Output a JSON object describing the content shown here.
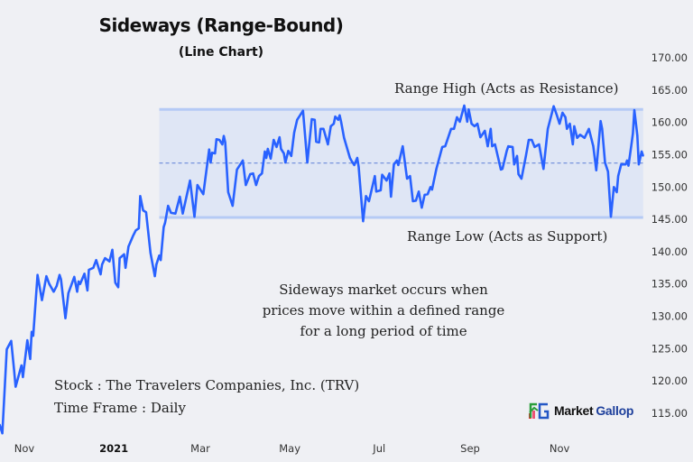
{
  "title": "Sideways (Range-Bound)",
  "subtitle": "(Line Chart)",
  "annotations": {
    "range_high": "Range High (Acts as Resistance)",
    "range_low": "Range Low (Acts as Support)",
    "note": [
      "Sideways market occurs when",
      "prices move within a defined range",
      "for a long period of time"
    ],
    "stock": "Stock : The Travelers Companies, Inc. (TRV)",
    "timeframe": "Time Frame : Daily"
  },
  "brand": {
    "word1": "Market",
    "word2": "Gallop"
  },
  "colors": {
    "line": "#2962ff",
    "band_fill": "#dfe6f5",
    "band_border": "#b5caf5",
    "midline": "#5b7fd6",
    "background": "#eff0f4"
  },
  "chart_data": {
    "type": "line",
    "xlabel": "",
    "ylabel": "",
    "ylim": [
      115,
      170
    ],
    "y_ticks": [
      "115.00",
      "120.00",
      "125.00",
      "130.00",
      "135.00",
      "140.00",
      "145.00",
      "150.00",
      "155.00",
      "160.00",
      "165.00",
      "170.00"
    ],
    "x_ticks": [
      {
        "label": "Nov",
        "date": "2020-11-01",
        "bold": false
      },
      {
        "label": "2021",
        "date": "2021-01-01",
        "bold": true
      },
      {
        "label": "Mar",
        "date": "2021-03-01",
        "bold": false
      },
      {
        "label": "May",
        "date": "2021-05-01",
        "bold": false
      },
      {
        "label": "Jul",
        "date": "2021-07-01",
        "bold": false
      },
      {
        "label": "Sep",
        "date": "2021-09-01",
        "bold": false
      },
      {
        "label": "Nov",
        "date": "2021-11-01",
        "bold": false
      }
    ],
    "y_axis_position": "right",
    "grid": false,
    "range": {
      "start": "2021-02-01",
      "high": 162.0,
      "low": 145.3,
      "mid": 153.7
    },
    "x": [
      "2020-10-15",
      "2020-10-17",
      "2020-10-20",
      "2020-10-23",
      "2020-10-25",
      "2020-10-26",
      "2020-10-30",
      "2020-10-31",
      "2020-11-03",
      "2020-11-05",
      "2020-11-06",
      "2020-11-07",
      "2020-11-10",
      "2020-11-13",
      "2020-11-16",
      "2020-11-18",
      "2020-11-21",
      "2020-11-23",
      "2020-11-25",
      "2020-11-26",
      "2020-11-29",
      "2020-12-01",
      "2020-12-05",
      "2020-12-07",
      "2020-12-08",
      "2020-12-09",
      "2020-12-12",
      "2020-12-14",
      "2020-12-15",
      "2020-12-18",
      "2020-12-20",
      "2020-12-23",
      "2020-12-24",
      "2020-12-26",
      "2020-12-29",
      "2020-12-31",
      "2021-01-02",
      "2021-01-04",
      "2021-01-05",
      "2021-01-08",
      "2021-01-09",
      "2021-01-11",
      "2021-01-14",
      "2021-01-16",
      "2021-01-18",
      "2021-01-19",
      "2021-01-21",
      "2021-01-23",
      "2021-01-26",
      "2021-01-29",
      "2021-01-30",
      "2021-02-01",
      "2021-02-02",
      "2021-02-04",
      "2021-02-05",
      "2021-02-07",
      "2021-02-09",
      "2021-02-12",
      "2021-02-15",
      "2021-02-17",
      "2021-02-22",
      "2021-02-25",
      "2021-02-27",
      "2021-03-03",
      "2021-03-07",
      "2021-03-08",
      "2021-03-09",
      "2021-03-11",
      "2021-03-12",
      "2021-03-14",
      "2021-03-16",
      "2021-03-17",
      "2021-03-18",
      "2021-03-20",
      "2021-03-23",
      "2021-03-26",
      "2021-03-30",
      "2021-04-01",
      "2021-04-04",
      "2021-04-06",
      "2021-04-08",
      "2021-04-10",
      "2021-04-12",
      "2021-04-14",
      "2021-04-15",
      "2021-04-16",
      "2021-04-18",
      "2021-04-20",
      "2021-04-22",
      "2021-04-24",
      "2021-04-25",
      "2021-04-27",
      "2021-04-28",
      "2021-04-30",
      "2021-05-02",
      "2021-05-04",
      "2021-05-06",
      "2021-05-08",
      "2021-05-10",
      "2021-05-13",
      "2021-05-16",
      "2021-05-18",
      "2021-05-19",
      "2021-05-21",
      "2021-05-22",
      "2021-05-24",
      "2021-05-27",
      "2021-05-29",
      "2021-05-31",
      "2021-06-01",
      "2021-06-03",
      "2021-06-04",
      "2021-06-05",
      "2021-06-07",
      "2021-06-11",
      "2021-06-12",
      "2021-06-14",
      "2021-06-16",
      "2021-06-17",
      "2021-06-20",
      "2021-06-22",
      "2021-06-24",
      "2021-06-28",
      "2021-06-29",
      "2021-07-02",
      "2021-07-03",
      "2021-07-06",
      "2021-07-08",
      "2021-07-09",
      "2021-07-11",
      "2021-07-13",
      "2021-07-14",
      "2021-07-17",
      "2021-07-20",
      "2021-07-22",
      "2021-07-24",
      "2021-07-26",
      "2021-07-28",
      "2021-07-30",
      "2021-08-01",
      "2021-08-03",
      "2021-08-05",
      "2021-08-06",
      "2021-08-09",
      "2021-08-13",
      "2021-08-15",
      "2021-08-19",
      "2021-08-21",
      "2021-08-23",
      "2021-08-25",
      "2021-08-28",
      "2021-08-30",
      "2021-08-31",
      "2021-09-02",
      "2021-09-04",
      "2021-09-06",
      "2021-09-08",
      "2021-09-11",
      "2021-09-13",
      "2021-09-15",
      "2021-09-16",
      "2021-09-18",
      "2021-09-22",
      "2021-09-23",
      "2021-09-26",
      "2021-09-27",
      "2021-09-30",
      "2021-10-01",
      "2021-10-03",
      "2021-10-04",
      "2021-10-06",
      "2021-10-09",
      "2021-10-11",
      "2021-10-13",
      "2021-10-15",
      "2021-10-18",
      "2021-10-21",
      "2021-10-24",
      "2021-10-28",
      "2021-10-30",
      "2021-11-01",
      "2021-11-03",
      "2021-11-05",
      "2021-11-06",
      "2021-11-08",
      "2021-11-10",
      "2021-11-11",
      "2021-11-13",
      "2021-11-15",
      "2021-11-18",
      "2021-11-21",
      "2021-11-24",
      "2021-11-26",
      "2021-11-29",
      "2021-11-30",
      "2021-12-02",
      "2021-12-04",
      "2021-12-06",
      "2021-12-08",
      "2021-12-10",
      "2021-12-11",
      "2021-12-13",
      "2021-12-16",
      "2021-12-17",
      "2021-12-18",
      "2021-12-20",
      "2021-12-21",
      "2021-12-22",
      "2021-12-24",
      "2021-12-25",
      "2021-12-27",
      "2021-12-28"
    ],
    "y": [
      113.3,
      111.9,
      124.9,
      126.2,
      121.7,
      119.1,
      122.4,
      120.6,
      126.3,
      123.4,
      127.6,
      127.0,
      136.4,
      132.5,
      136.2,
      135.0,
      133.8,
      134.7,
      136.4,
      135.7,
      129.7,
      133.6,
      136.1,
      133.8,
      135.4,
      135.0,
      136.6,
      134.0,
      137.2,
      137.5,
      138.7,
      136.5,
      138.0,
      139.0,
      138.5,
      140.3,
      135.2,
      134.5,
      139.0,
      139.6,
      137.5,
      140.8,
      142.4,
      143.3,
      143.6,
      148.6,
      146.4,
      146.1,
      139.8,
      136.2,
      138.0,
      139.4,
      138.7,
      143.8,
      144.5,
      147.1,
      146.0,
      145.9,
      148.5,
      145.9,
      151.0,
      145.4,
      150.3,
      148.9,
      155.8,
      153.8,
      155.3,
      155.2,
      157.4,
      157.3,
      156.6,
      157.9,
      156.9,
      149.2,
      147.1,
      152.7,
      154.1,
      150.3,
      152.0,
      152.1,
      150.3,
      151.7,
      152.1,
      155.5,
      154.5,
      155.9,
      154.4,
      157.3,
      156.2,
      157.7,
      155.9,
      155.2,
      153.8,
      155.6,
      154.8,
      158.4,
      160.4,
      161.1,
      161.8,
      153.8,
      160.5,
      160.4,
      157.0,
      156.9,
      159.0,
      159.0,
      156.6,
      159.4,
      159.8,
      160.9,
      160.4,
      161.1,
      160.1,
      157.6,
      154.5,
      154.1,
      153.4,
      154.5,
      153.1,
      144.7,
      148.6,
      147.8,
      151.7,
      149.3,
      149.5,
      151.9,
      151.0,
      152.1,
      148.5,
      153.5,
      154.1,
      153.4,
      156.3,
      151.3,
      151.7,
      147.8,
      147.9,
      149.3,
      146.8,
      148.8,
      148.9,
      150.0,
      149.6,
      152.8,
      156.2,
      156.3,
      159.0,
      159.0,
      160.8,
      160.1,
      162.6,
      160.1,
      162.0,
      159.8,
      159.4,
      159.8,
      157.7,
      158.7,
      156.3,
      159.0,
      156.3,
      156.6,
      152.7,
      152.8,
      155.6,
      156.3,
      156.2,
      153.5,
      154.8,
      152.0,
      151.3,
      154.8,
      157.3,
      157.3,
      156.2,
      156.6,
      152.8,
      159.0,
      162.5,
      161.2,
      159.8,
      161.5,
      160.8,
      159.0,
      159.8,
      156.6,
      159.4,
      157.6,
      158.1,
      157.6,
      159.0,
      156.3,
      152.6,
      160.2,
      159.0,
      153.8,
      152.4,
      145.4,
      150.0,
      149.2,
      151.7,
      153.5,
      153.5,
      154.1,
      153.3,
      156.6,
      158.3,
      161.9,
      158.0,
      153.5,
      155.5,
      154.8
    ]
  }
}
